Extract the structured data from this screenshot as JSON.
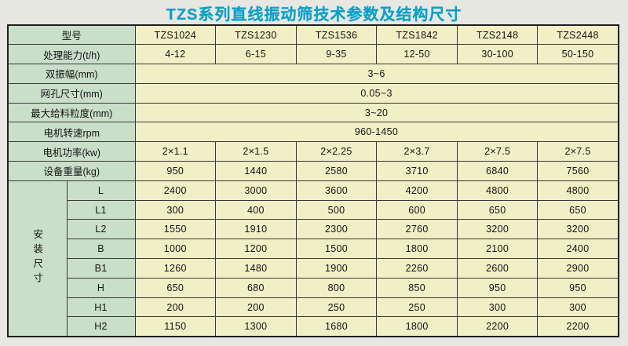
{
  "title": "TZS系列直线振动筛技术参数及结构尺寸",
  "colors": {
    "title_text": "#0a9fc9",
    "label_cell_bg": "#cadfc9",
    "data_cell_bg": "#f0efc6",
    "border": "#3a3a3a",
    "page_bg": "#e6e8e1"
  },
  "table": {
    "model_label": "型号",
    "models": [
      "TZS1024",
      "TZS1230",
      "TZS1536",
      "TZS1842",
      "TZS2148",
      "TZS2448"
    ],
    "param_rows": [
      {
        "label": "处理能力(t/h)",
        "values": [
          "4-12",
          "6-15",
          "9-35",
          "12-50",
          "30-100",
          "50-150"
        ]
      },
      {
        "label": "双振幅(mm)",
        "merged_value": "3~6"
      },
      {
        "label": "网孔尺寸(mm)",
        "merged_value": "0.05~3"
      },
      {
        "label": "最大给料粒度(mm)",
        "merged_value": "3~20"
      },
      {
        "label": "电机转速rpm",
        "merged_value": "960-1450"
      },
      {
        "label": "电机功率(kw)",
        "values": [
          "2×1.1",
          "2×1.5",
          "2×2.25",
          "2×3.7",
          "2×7.5",
          "2×7.5"
        ]
      },
      {
        "label": "设备重量(kg)",
        "values": [
          "950",
          "1440",
          "2580",
          "3710",
          "6840",
          "7560"
        ]
      }
    ],
    "install_group_label": "安装尺寸",
    "install_rows": [
      {
        "label": "L",
        "values": [
          "2400",
          "3000",
          "3600",
          "4200",
          "4800",
          "4800"
        ]
      },
      {
        "label": "L1",
        "values": [
          "300",
          "400",
          "500",
          "600",
          "650",
          "650"
        ]
      },
      {
        "label": "L2",
        "values": [
          "1550",
          "1910",
          "2300",
          "2760",
          "3200",
          "3200"
        ]
      },
      {
        "label": "B",
        "values": [
          "1000",
          "1200",
          "1500",
          "1800",
          "2100",
          "2400"
        ]
      },
      {
        "label": "B1",
        "values": [
          "1260",
          "1480",
          "1900",
          "2260",
          "2600",
          "2900"
        ]
      },
      {
        "label": "H",
        "values": [
          "650",
          "680",
          "800",
          "850",
          "950",
          "950"
        ]
      },
      {
        "label": "H1",
        "values": [
          "200",
          "200",
          "250",
          "250",
          "300",
          "300"
        ]
      },
      {
        "label": "H2",
        "values": [
          "1150",
          "1300",
          "1680",
          "1800",
          "2200",
          "2200"
        ]
      }
    ]
  }
}
